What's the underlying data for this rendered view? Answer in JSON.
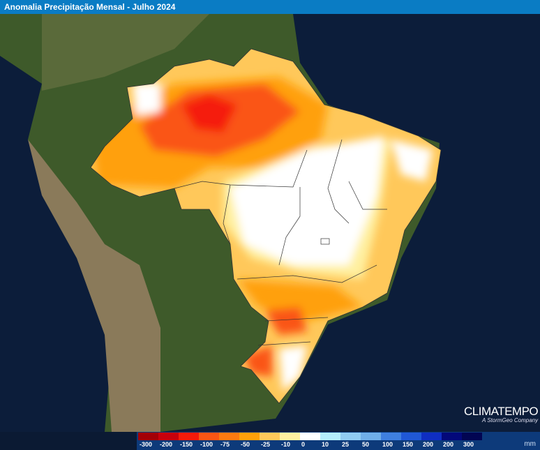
{
  "title": "Anomalia Precipitação Mensal - Julho 2024",
  "legend": {
    "unit": "mm",
    "items": [
      {
        "label": "-300",
        "color": "#a30006"
      },
      {
        "label": "-200",
        "color": "#c8000c"
      },
      {
        "label": "-150",
        "color": "#f51a0a"
      },
      {
        "label": "-100",
        "color": "#fa5514"
      },
      {
        "label": "-75",
        "color": "#fd7a10"
      },
      {
        "label": "-50",
        "color": "#ffa00a"
      },
      {
        "label": "-25",
        "color": "#ffc85a"
      },
      {
        "label": "-10",
        "color": "#fff0a0"
      },
      {
        "label": "0",
        "color": "#ffffff"
      },
      {
        "label": "10",
        "color": "#b4eefc"
      },
      {
        "label": "25",
        "color": "#90cbf2"
      },
      {
        "label": "50",
        "color": "#70aee8"
      },
      {
        "label": "100",
        "color": "#3f7fe0"
      },
      {
        "label": "150",
        "color": "#2058d6"
      },
      {
        "label": "200",
        "color": "#0f2ec2"
      },
      {
        "label": "200",
        "color": "#03087a"
      },
      {
        "label": "300",
        "color": "#020552"
      }
    ]
  },
  "logo": {
    "name": "CLIMATEMPO",
    "tagline": "A StormGeo Company"
  }
}
